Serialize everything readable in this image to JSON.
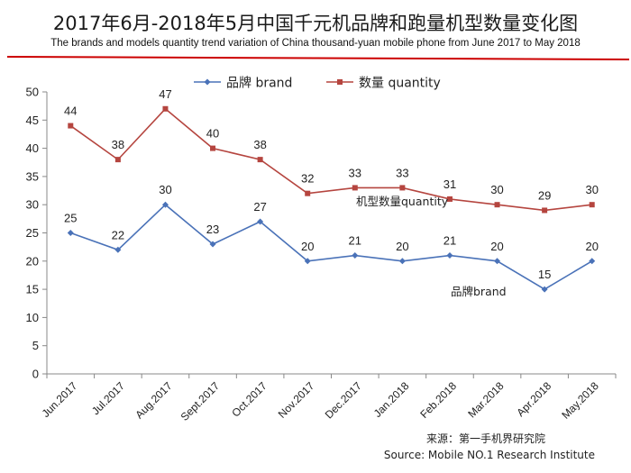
{
  "header": {
    "title": "2017年6月-2018年5月中国千元机品牌和跑量机型数量变化图",
    "subtitle": "The brands and models quantity trend variation of China thousand-yuan mobile phone from  June 2017 to May 2018"
  },
  "footer": {
    "source_cn": "来源：第一手机界研究院",
    "source_en": "Source: Mobile NO.1 Research Institute"
  },
  "chart_data": {
    "type": "line",
    "title": "2017年6月-2018年5月中国千元机品牌和跑量机型数量变化图",
    "categories": [
      "Jun.2017",
      "Jul.2017",
      "Aug.2017",
      "Sept.2017",
      "Oct.2017",
      "Nov.2017",
      "Dec.2017",
      "Jan.2018",
      "Feb.2018",
      "Mar.2018",
      "Apr.2018",
      "May.2018"
    ],
    "yticks": [
      "0",
      "5",
      "10",
      "15",
      "20",
      "25",
      "30",
      "35",
      "40",
      "45",
      "50"
    ],
    "ylim": [
      0,
      50
    ],
    "grid": false,
    "legend_position": "top",
    "series": [
      {
        "name": "品牌 brand",
        "color": "#4a72b8",
        "marker": "diamond",
        "values": [
          25,
          22,
          30,
          23,
          27,
          20,
          21,
          20,
          21,
          20,
          15,
          20
        ],
        "labels": [
          "25",
          "22",
          "30",
          "23",
          "27",
          "20",
          "21",
          "20",
          "21",
          "20",
          "15",
          "20"
        ],
        "annotation": "品牌brand"
      },
      {
        "name": "数量 quantity",
        "color": "#b5453f",
        "marker": "square",
        "values": [
          44,
          38,
          47,
          40,
          38,
          32,
          33,
          33,
          31,
          30,
          29,
          30
        ],
        "labels": [
          "44",
          "38",
          "47",
          "40",
          "38",
          "32",
          "33",
          "33",
          "31",
          "30",
          "29",
          "30"
        ],
        "annotation": "机型数量quantity"
      }
    ]
  }
}
